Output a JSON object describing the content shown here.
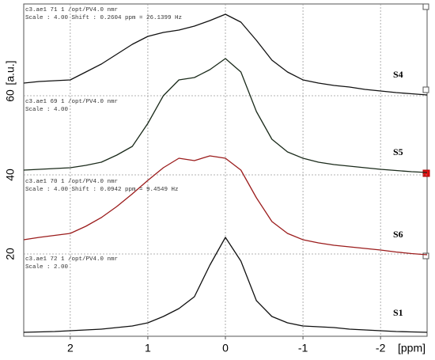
{
  "chart_data": {
    "type": "line",
    "x_label": "[ppm]",
    "y_label": "[a.u.]",
    "x": [
      2.6,
      2.4,
      2.2,
      2.0,
      1.8,
      1.6,
      1.4,
      1.2,
      1.0,
      0.8,
      0.6,
      0.4,
      0.2,
      0,
      -0.2,
      -0.4,
      -0.6,
      -0.8,
      -1.0,
      -1.2,
      -1.4,
      -1.6,
      -1.8,
      -2.0,
      -2.2,
      -2.4,
      -2.6
    ],
    "series": [
      {
        "name": "S4",
        "color": "#111111",
        "values": [
          63.2,
          63.6,
          63.8,
          64,
          66,
          68,
          70.5,
          73,
          75,
          76,
          76.6,
          77.6,
          79,
          80.6,
          78.6,
          74,
          69,
          66,
          64,
          63.2,
          62.6,
          62.2,
          61.6,
          61.2,
          60.8,
          60.5,
          60.2
        ]
      },
      {
        "name": "S5",
        "color": "#1a2a1a",
        "values": [
          41.2,
          41.4,
          41.6,
          41.8,
          42.4,
          43.2,
          45,
          47.2,
          53,
          60,
          64,
          64.6,
          66.6,
          69.4,
          66,
          56,
          49,
          45.8,
          44.2,
          43.2,
          42.6,
          42.2,
          41.8,
          41.4,
          41.1,
          40.8,
          40.6
        ]
      },
      {
        "name": "S6",
        "color": "#9b1c1c",
        "values": [
          23.6,
          24.2,
          24.7,
          25.2,
          27,
          29.2,
          32,
          35.2,
          38.6,
          41.8,
          44.2,
          43.6,
          44.8,
          44.2,
          41.2,
          34.2,
          28.2,
          25.2,
          23.6,
          22.8,
          22.2,
          21.8,
          21.4,
          21,
          20.5,
          20.1,
          19.8
        ]
      },
      {
        "name": "S1",
        "color": "#111111",
        "values": [
          0.2,
          0.3,
          0.4,
          0.6,
          0.8,
          1,
          1.4,
          1.8,
          2.6,
          4.2,
          6.2,
          9.2,
          17.2,
          24.2,
          18.2,
          8.2,
          4.2,
          2.6,
          1.8,
          1.6,
          1.4,
          1,
          0.8,
          0.6,
          0.4,
          0.3,
          0.2
        ]
      }
    ],
    "annotations": [
      [
        "c3.ae1  71  1  /opt/PV4.0  nmr",
        "Scale : 4.00 Shift : 0.2604 ppm = 26.1399 Hz"
      ],
      [
        "c3.ae1  69  1  /opt/PV4.0  nmr",
        "Scale : 4.00"
      ],
      [
        "c3.ae1  70  1  /opt/PV4.0  nmr",
        "Scale : 4.00 Shift : 0.0942 ppm = 9.4549 Hz"
      ],
      [
        "c3.ae1  72  1  /opt/PV4.0  nmr",
        "Scale : 2.00"
      ]
    ],
    "xlim": [
      2.6,
      -2.6
    ],
    "xticks": [
      2,
      1,
      0,
      -1,
      -2
    ],
    "ylim": [
      -0.8,
      83.2
    ],
    "yticks": [
      20,
      40,
      60
    ],
    "grid": true
  }
}
